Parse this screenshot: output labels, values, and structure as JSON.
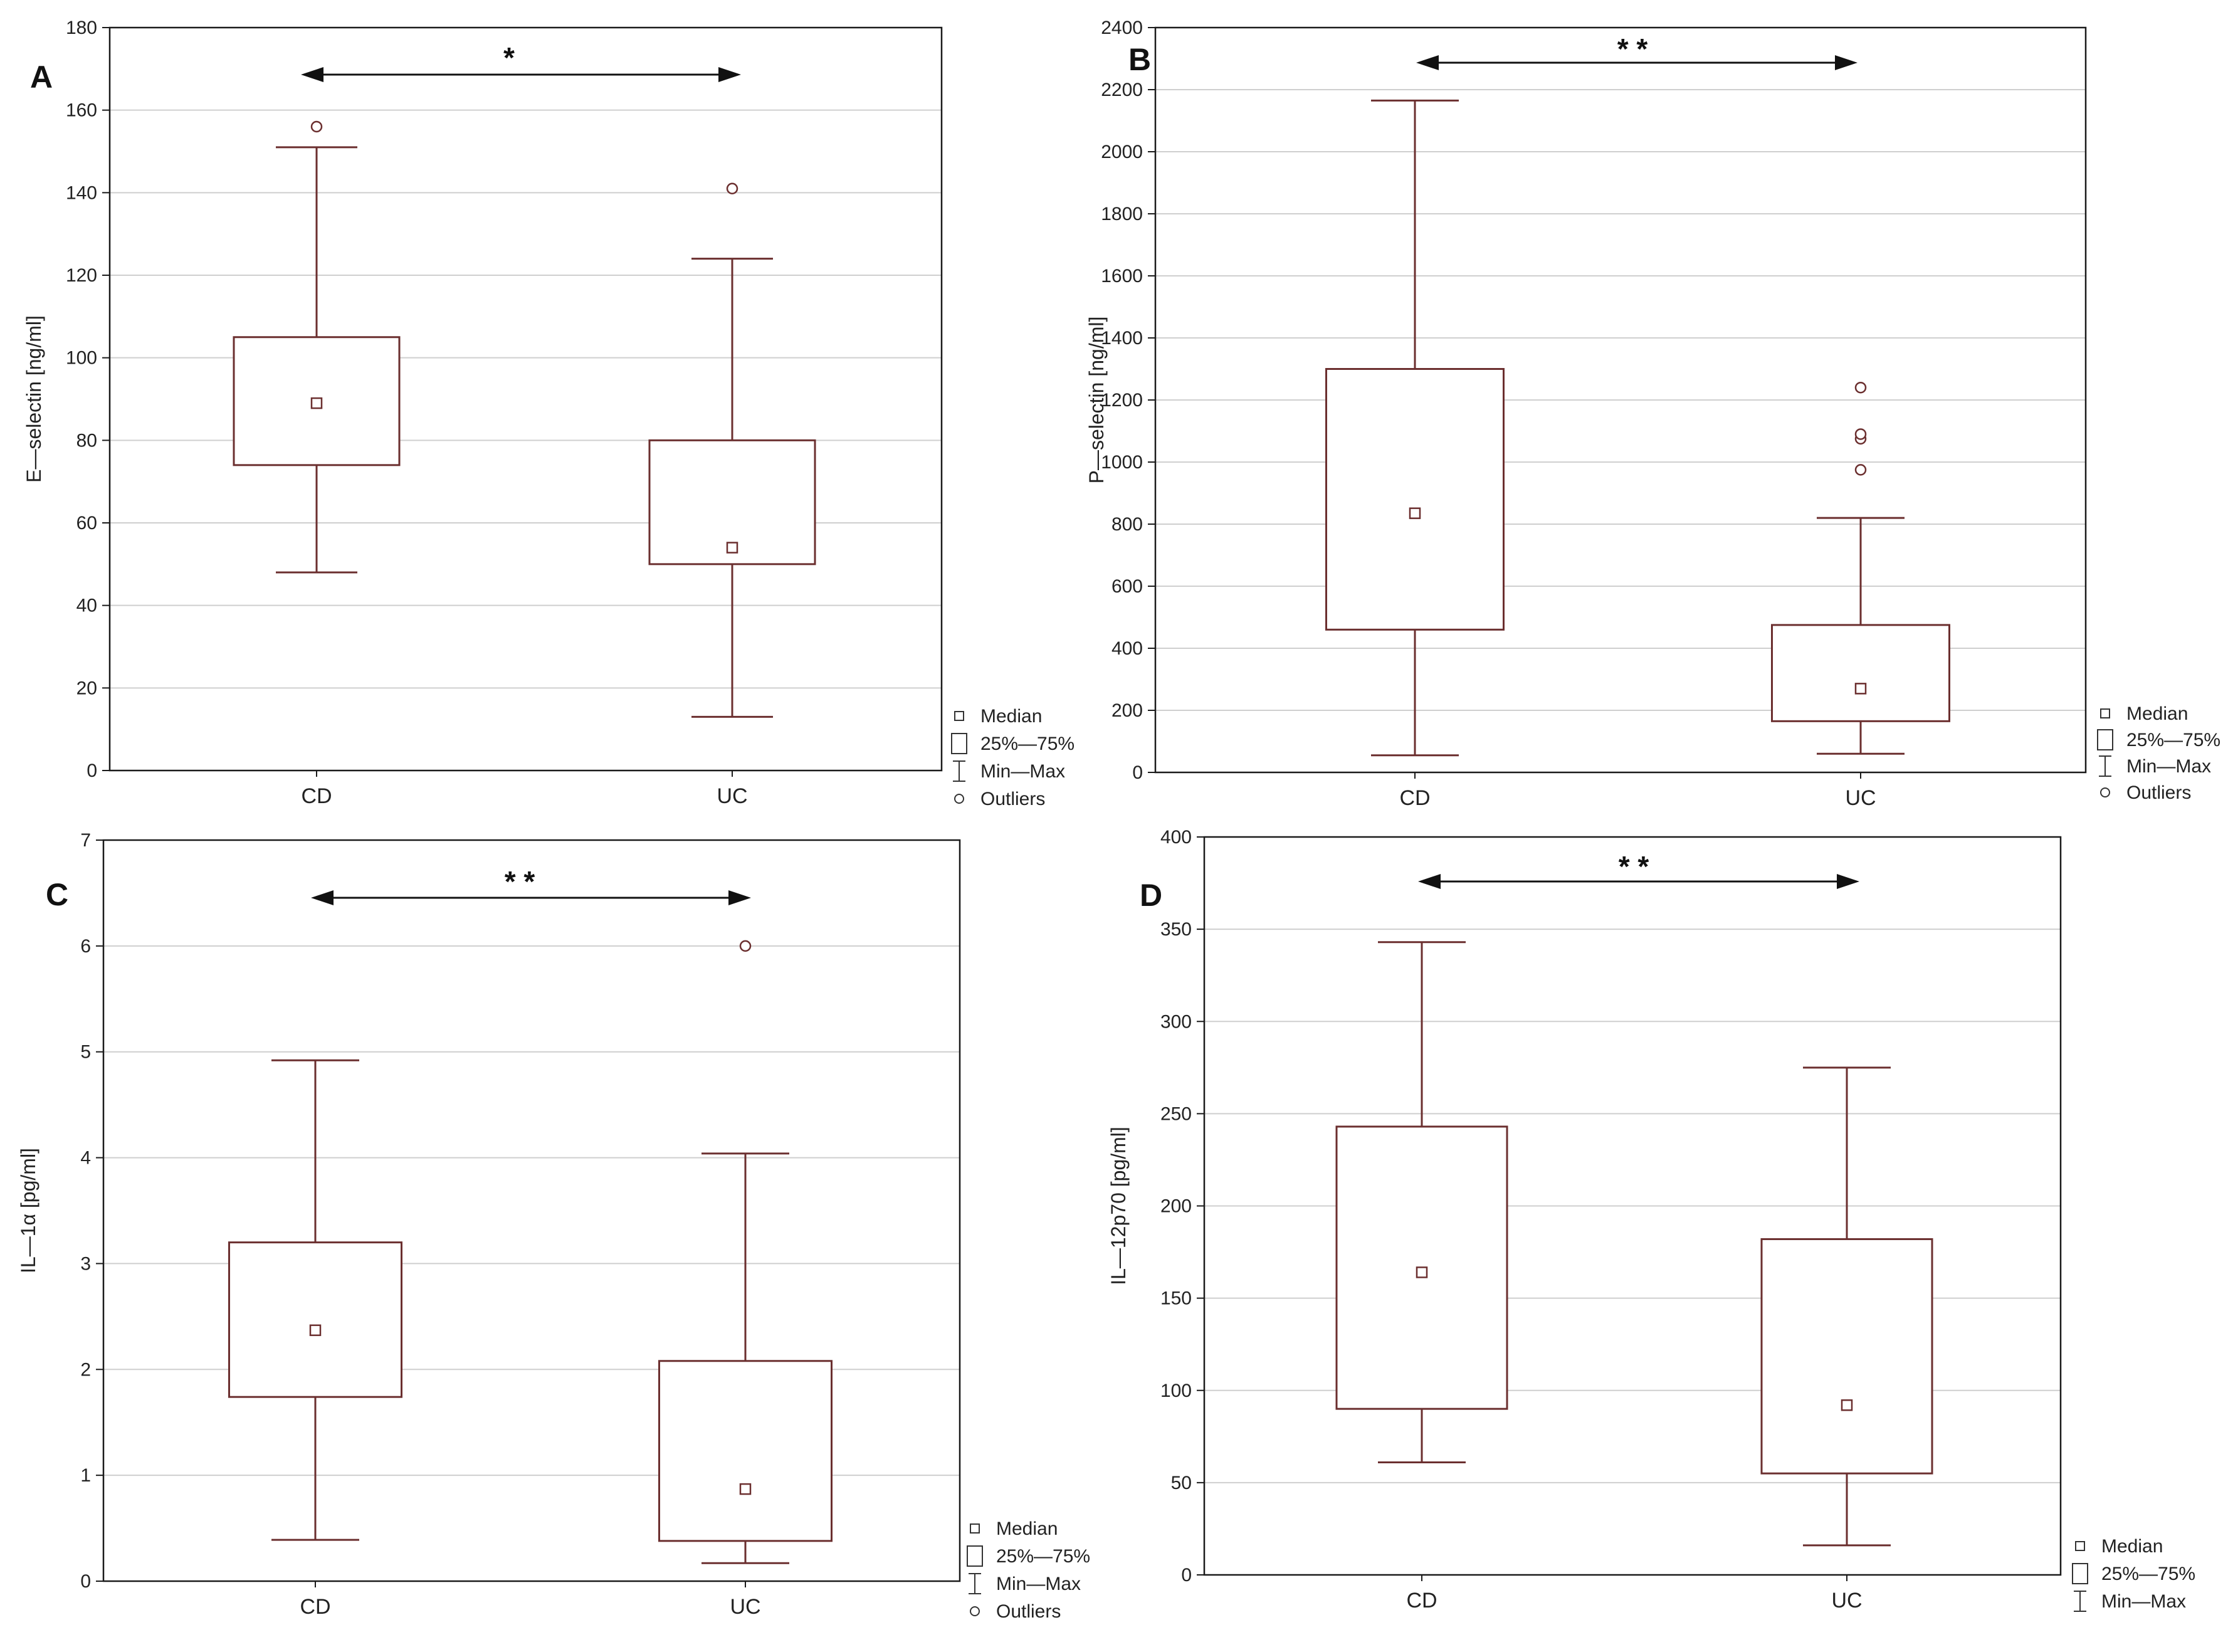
{
  "colors": {
    "box": "#6b2f2f",
    "grid": "#cfcfcf",
    "frame": "#1a1a1a",
    "text": "#222222"
  },
  "chart_data": [
    {
      "type": "boxplot",
      "panel_label": "A",
      "ylabel": "E—selectin [ng/ml]",
      "ylim": [
        0,
        180
      ],
      "yticks": [
        0,
        20,
        40,
        60,
        80,
        100,
        120,
        140,
        160,
        180
      ],
      "categories": [
        "CD",
        "UC"
      ],
      "series": [
        {
          "name": "CD",
          "min": 48,
          "q1": 74,
          "median": 89,
          "q3": 105,
          "max": 151,
          "outliers": [
            156
          ]
        },
        {
          "name": "UC",
          "min": 13,
          "q1": 50,
          "median": 54,
          "q3": 80,
          "max": 124,
          "outliers": [
            141
          ]
        }
      ],
      "significance": "*",
      "legend": [
        "Median",
        "25%—75%",
        "Min—Max",
        "Outliers"
      ]
    },
    {
      "type": "boxplot",
      "panel_label": "B",
      "ylabel": "P—selectin [ng/ml]",
      "ylim": [
        0,
        2400
      ],
      "yticks": [
        0,
        200,
        400,
        600,
        800,
        1000,
        1200,
        1400,
        1600,
        1800,
        2000,
        2200,
        2400
      ],
      "categories": [
        "CD",
        "UC"
      ],
      "series": [
        {
          "name": "CD",
          "min": 55,
          "q1": 460,
          "median": 835,
          "q3": 1300,
          "max": 2165,
          "outliers": []
        },
        {
          "name": "UC",
          "min": 60,
          "q1": 165,
          "median": 270,
          "q3": 475,
          "max": 820,
          "outliers": [
            975,
            1075,
            1090,
            1240
          ]
        }
      ],
      "significance": "* *",
      "legend": [
        "Median",
        "25%—75%",
        "Min—Max",
        "Outliers"
      ]
    },
    {
      "type": "boxplot",
      "panel_label": "C",
      "ylabel": "IL—1α [pg/ml]",
      "ylim": [
        0,
        7
      ],
      "yticks": [
        0,
        1,
        2,
        3,
        4,
        5,
        6,
        7
      ],
      "categories": [
        "CD",
        "UC"
      ],
      "series": [
        {
          "name": "CD",
          "min": 0.39,
          "q1": 1.74,
          "median": 2.37,
          "q3": 3.2,
          "max": 4.92,
          "outliers": []
        },
        {
          "name": "UC",
          "min": 0.17,
          "q1": 0.38,
          "median": 0.87,
          "q3": 2.08,
          "max": 4.04,
          "outliers": [
            6
          ]
        }
      ],
      "significance": "* *",
      "legend": [
        "Median",
        "25%—75%",
        "Min—Max",
        "Outliers"
      ]
    },
    {
      "type": "boxplot",
      "panel_label": "D",
      "ylabel": "IL—12p70 [pg/ml]",
      "ylim": [
        0,
        400
      ],
      "yticks": [
        0,
        50,
        100,
        150,
        200,
        250,
        300,
        350,
        400
      ],
      "categories": [
        "CD",
        "UC"
      ],
      "series": [
        {
          "name": "CD",
          "min": 61,
          "q1": 90,
          "median": 164,
          "q3": 243,
          "max": 343,
          "outliers": []
        },
        {
          "name": "UC",
          "min": 16,
          "q1": 55,
          "median": 92,
          "q3": 182,
          "max": 275,
          "outliers": []
        }
      ],
      "significance": "* *",
      "legend": [
        "Median",
        "25%—75%",
        "Min—Max"
      ]
    }
  ]
}
